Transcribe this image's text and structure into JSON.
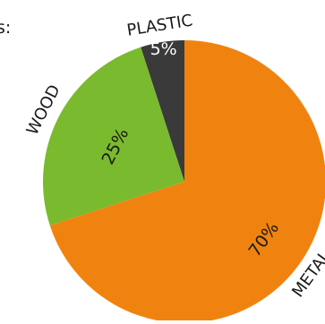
{
  "chart_data": {
    "type": "pie",
    "title": "s:",
    "categories": [
      "PLASTIC",
      "WOOD",
      "METAL"
    ],
    "values": [
      5,
      25,
      70
    ],
    "value_labels": [
      "5%",
      "25%",
      "70%"
    ],
    "colors": [
      "#3a3a3a",
      "#7aba2e",
      "#f0830f"
    ],
    "label_colors": [
      "#ffffff",
      "#1a1a1a",
      "#1a1a1a"
    ],
    "start_angle_deg": 0,
    "direction": "counterclockwise",
    "legend": "none"
  }
}
